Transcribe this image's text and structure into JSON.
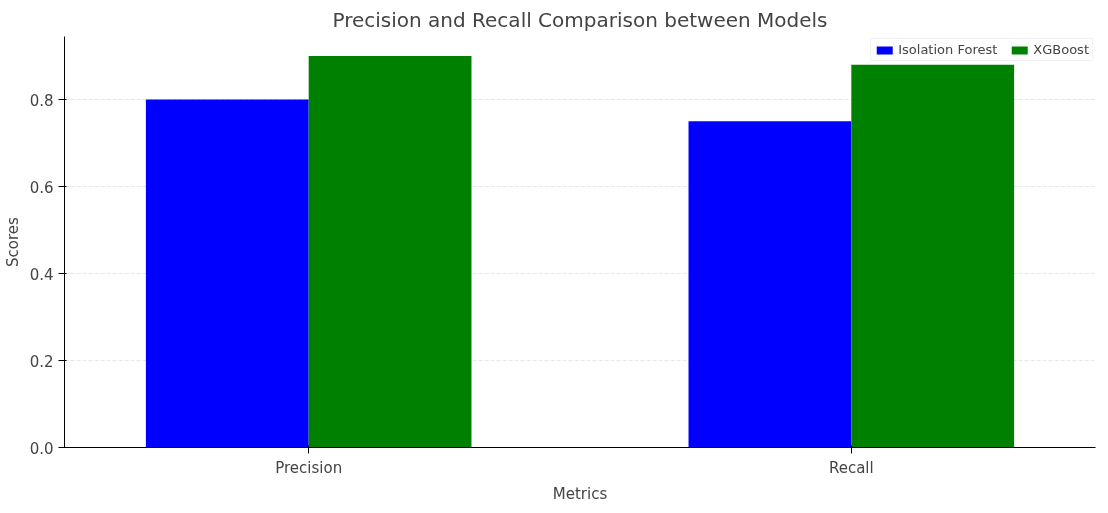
{
  "chart_data": {
    "type": "bar",
    "title": "Precision and Recall Comparison between Models",
    "xlabel": "Metrics",
    "ylabel": "Scores",
    "categories": [
      "Precision",
      "Recall"
    ],
    "series": [
      {
        "name": "Isolation Forest",
        "color": "#0000ff",
        "values": [
          0.8,
          0.75
        ]
      },
      {
        "name": "XGBoost",
        "color": "#008000",
        "values": [
          0.9,
          0.88
        ]
      }
    ],
    "ylim": [
      0,
      0.945
    ],
    "yticks": [
      {
        "value": 0,
        "label": "0.0"
      },
      {
        "value": 0.2,
        "label": "0.2"
      },
      {
        "value": 0.4,
        "label": "0.4"
      },
      {
        "value": 0.6,
        "label": "0.6"
      },
      {
        "value": 0.8,
        "label": "0.8"
      }
    ],
    "grid": "y",
    "legend": "top right"
  }
}
